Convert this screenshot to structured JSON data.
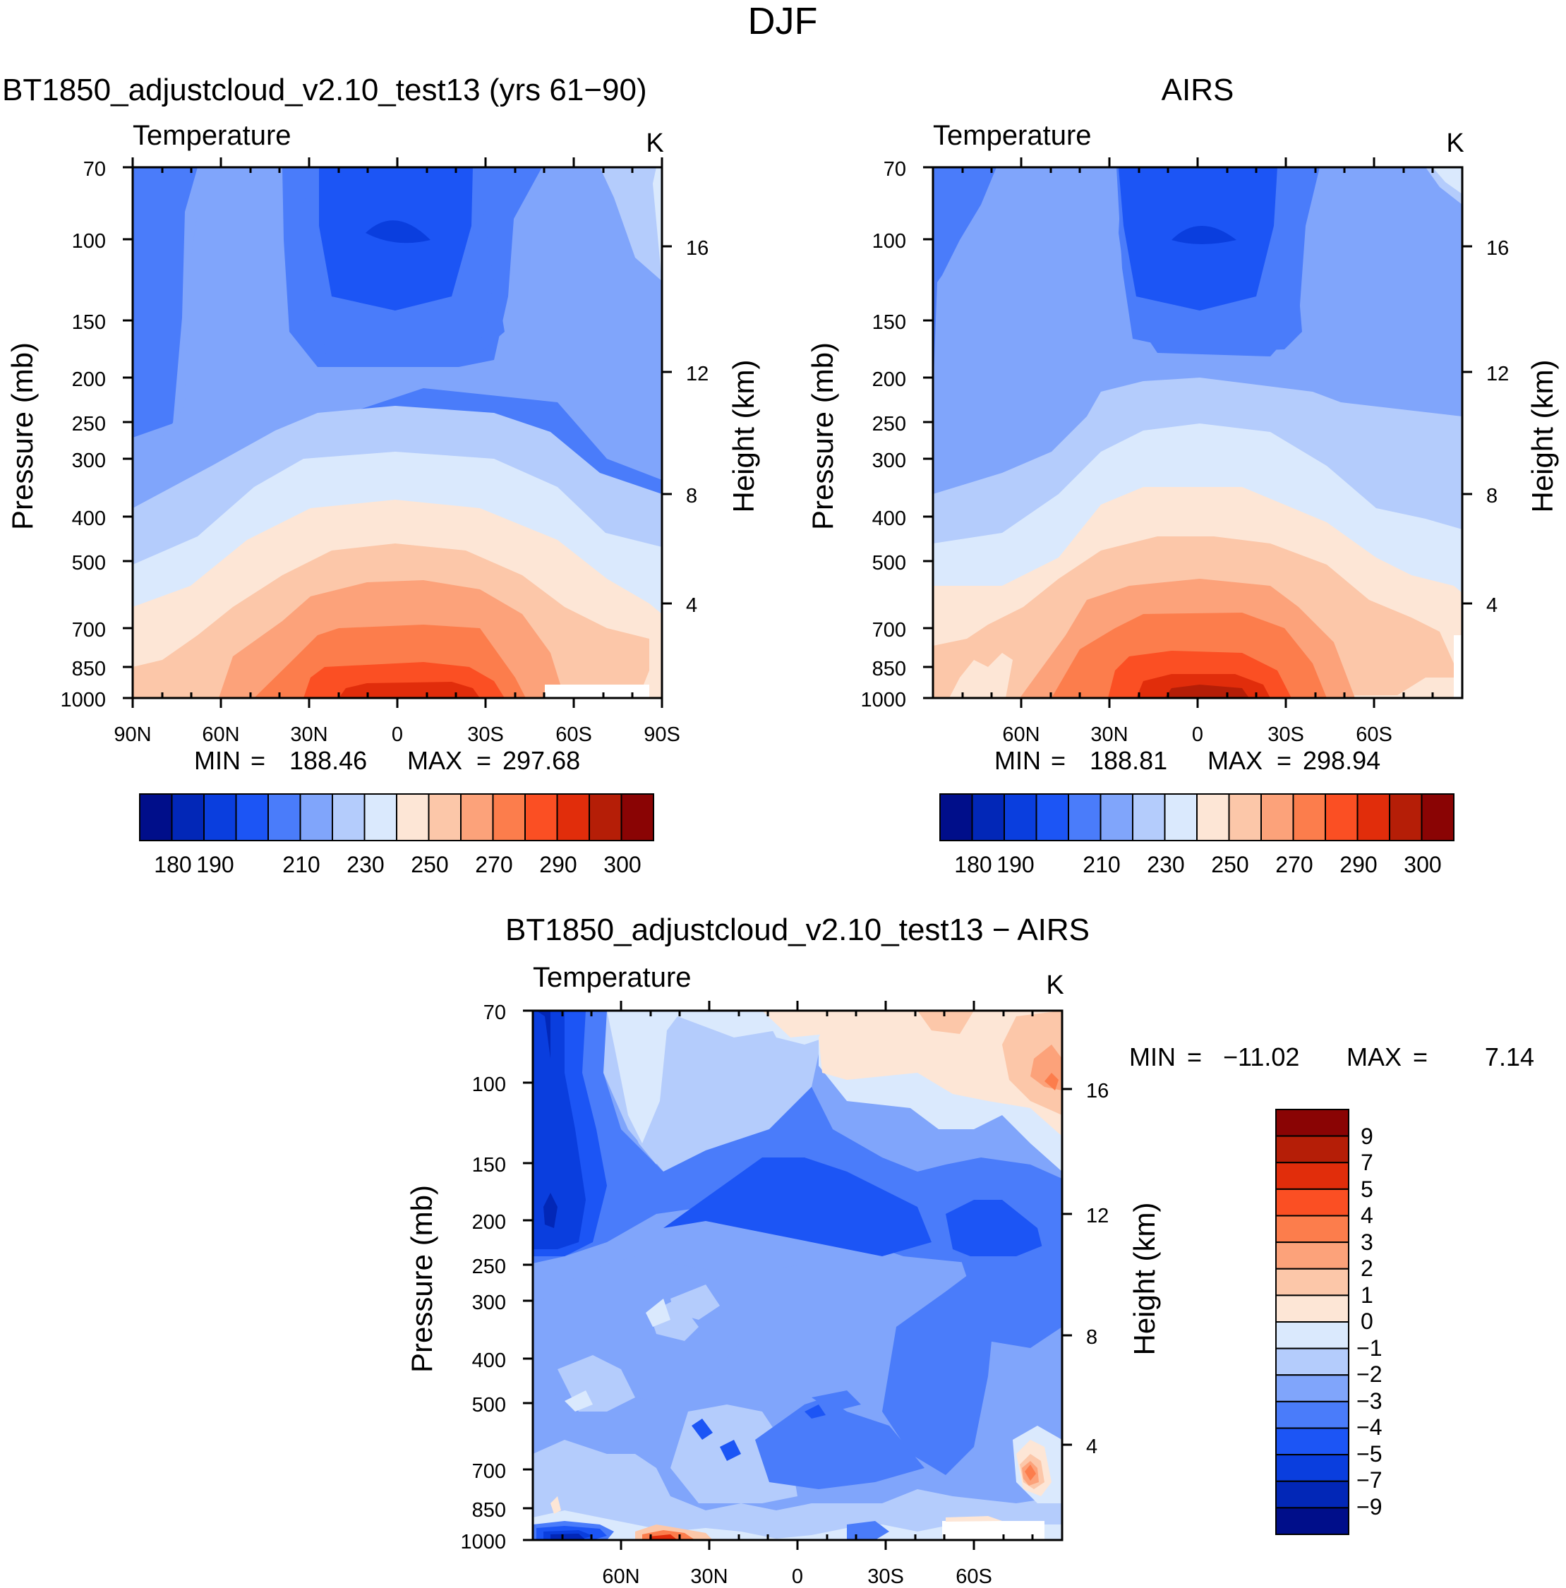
{
  "figure_title": "DJF",
  "chart_data": [
    {
      "type": "heatmap",
      "title": "BT1850_adjustcloud_v2.10_test13 (yrs 61−90)",
      "subtitle_left": "Temperature",
      "units": "K",
      "ylabel": "Pressure (mb)",
      "ylabel_right": "Height (km)",
      "yticks": [
        "70",
        "100",
        "150",
        "200",
        "250",
        "300",
        "400",
        "500",
        "700",
        "850",
        "1000"
      ],
      "yticks_right": [
        "16",
        "12",
        "8",
        "4"
      ],
      "xticks": [
        "90N",
        "60N",
        "30N",
        "0",
        "30S",
        "60S",
        "90S"
      ],
      "stats": {
        "min_label": "MIN",
        "min": "188.46",
        "max_label": "MAX",
        "max": "297.68"
      },
      "colorbar_labels": [
        "180",
        "190",
        "210",
        "230",
        "250",
        "270",
        "290",
        "300"
      ]
    },
    {
      "type": "heatmap",
      "title": "AIRS",
      "subtitle_left": "Temperature",
      "units": "K",
      "ylabel": "Pressure (mb)",
      "ylabel_right": "Height (km)",
      "yticks": [
        "70",
        "100",
        "150",
        "200",
        "250",
        "300",
        "400",
        "500",
        "700",
        "850",
        "1000"
      ],
      "yticks_right": [
        "16",
        "12",
        "8",
        "4"
      ],
      "xticks": [
        "60N",
        "30N",
        "0",
        "30S",
        "60S"
      ],
      "stats": {
        "min_label": "MIN",
        "min": "188.81",
        "max_label": "MAX",
        "max": "298.94"
      },
      "colorbar_labels": [
        "180",
        "190",
        "210",
        "230",
        "250",
        "270",
        "290",
        "300"
      ]
    },
    {
      "type": "heatmap",
      "title": "BT1850_adjustcloud_v2.10_test13 − AIRS",
      "subtitle_left": "Temperature",
      "units": "K",
      "ylabel": "Pressure (mb)",
      "ylabel_right": "Height (km)",
      "yticks": [
        "70",
        "100",
        "150",
        "200",
        "250",
        "300",
        "400",
        "500",
        "700",
        "850",
        "1000"
      ],
      "yticks_right": [
        "16",
        "12",
        "8",
        "4"
      ],
      "xticks": [
        "60N",
        "30N",
        "0",
        "30S",
        "60S"
      ],
      "stats": {
        "min_label": "MIN",
        "min": "−11.02",
        "max_label": "MAX",
        "max": "7.14"
      },
      "colorbar_labels": [
        "9",
        "7",
        "5",
        "4",
        "3",
        "2",
        "1",
        "0",
        "−1",
        "−2",
        "−3",
        "−4",
        "−5",
        "−7",
        "−9"
      ]
    }
  ],
  "colors": {
    "temperature_palette": [
      "#000e8a",
      "#0227b7",
      "#0a3ede",
      "#1c55f5",
      "#4a7cfa",
      "#80a5fb",
      "#b4ccfc",
      "#dae9fd",
      "#fde6d6",
      "#fcc7a9",
      "#fca27a",
      "#fc7d4c",
      "#fb4f23",
      "#e12d0b",
      "#b51e07",
      "#8a0404"
    ],
    "difference_palette": [
      "#8a0404",
      "#b51e07",
      "#e12d0b",
      "#fb4f23",
      "#fc7d4c",
      "#fca27a",
      "#fcc7a9",
      "#fde6d6",
      "#dae9fd",
      "#b4ccfc",
      "#80a5fb",
      "#4a7cfa",
      "#1c55f5",
      "#0a3ede",
      "#0227b7",
      "#000e8a"
    ]
  }
}
